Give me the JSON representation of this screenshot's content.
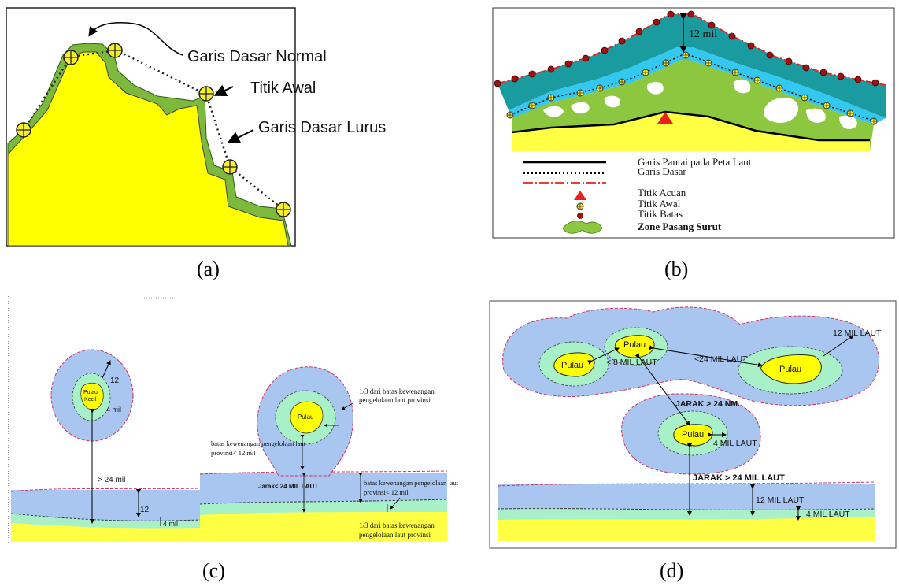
{
  "captions": {
    "a": "(a)",
    "b": "(b)",
    "c": "(c)",
    "d": "(d)"
  },
  "panel_a": {
    "labels": {
      "normal_baseline": "Garis Dasar Normal",
      "start_point": "Titik Awal",
      "straight_baseline": "Garis Dasar Lurus"
    }
  },
  "panel_b": {
    "distance": "12 mil",
    "legend": {
      "coastline": "Garis Pantai pada Peta Laut",
      "baseline": "Garis Dasar",
      "reference_point": "Titik Acuan",
      "start_point": "Titik Awal",
      "boundary_point": "Titik Batas",
      "tidal_zone": "Zone Pasang Surut"
    }
  },
  "panel_c": {
    "small_island": "Pulau\nKecil",
    "small_island_line1": "Pulau",
    "small_island_line2": "Kecil",
    "dist_12": "12",
    "dist_4mil": "4 mil",
    "gt_24_mil": "> 24 mil",
    "coast_12": "12",
    "coast_4mil": "4 mil",
    "island": "Pulau",
    "one_third_top_1": "1/3   dari   batas   kewenangan",
    "one_third_top_2": "pengelolaan laut provinsi",
    "authority_left_1": "batas kewenangan pengelolaan laut",
    "authority_left_2": "provinsi< 12 mil",
    "jarak": "Jarak< 24 MIL LAUT",
    "authority_right_1": "batas kewenangan pengelolaan laut",
    "authority_right_2": "provinsi< 12 mil",
    "one_third_bottom_1": "1/3   dari   batas   kewenangan",
    "one_third_bottom_2": "pengelolaan laut provinsi"
  },
  "panel_d": {
    "island_left": "Pulau",
    "island_top": "Pulau",
    "island_right": "Pulau",
    "island_bottom": "Pulau",
    "lt8": "< 8 MIL LAUT",
    "lt24": "<24 MIL LAUT",
    "twelve_top": "12 MIL LAUT",
    "jarak_nm": "JARAK > 24 NM.",
    "four_island": "4 MIL  LAUT",
    "jarak_24": "JARAK > 24 MIL LAUT",
    "twelve_coast": "12  MIL LAUT",
    "four_coast": "4  MIL LAUT"
  },
  "colors": {
    "land": "#ffff00",
    "tidal": "#7cb93c",
    "sea_dark": "#1a9ba0",
    "sea_light": "#33c8f0",
    "zone_blue": "#a9c6f0",
    "zone_green": "#a8f0c8",
    "red": "#e8211c"
  }
}
